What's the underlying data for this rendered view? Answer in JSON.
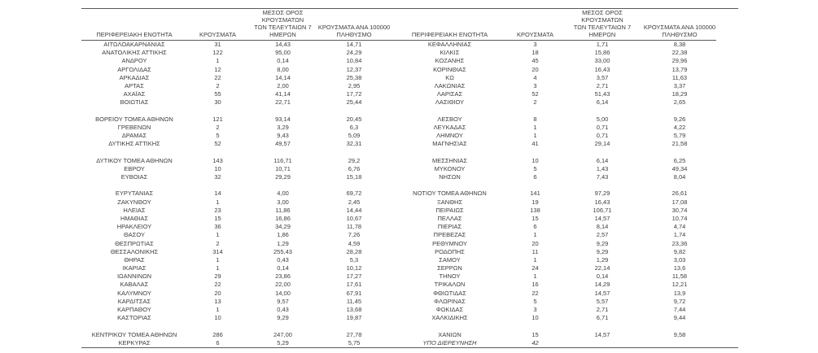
{
  "colors": {
    "background": "#ffffff",
    "text": "#3d3d3d",
    "rule": "#5a5a5a"
  },
  "table": {
    "headers": {
      "region": "ΠΕΡΙΦΕΡΕΙΑΚΗ ΕΝΟΤΗΤΑ",
      "cases": "ΚΡΟΥΣΜΑΤΑ",
      "avg7": "ΜΕΣΟΣ ΟΡΟΣ ΚΡΟΥΣΜΑΤΩΝ\nΤΩΝ ΤΕΛΕΥΤΑΙΩΝ 7\nΗΜΕΡΩΝ",
      "per100k": "ΚΡΟΥΣΜΑΤΑ ΑΝΑ 100000\nΠΛΗΘΥΣΜΟ"
    },
    "left_rows": [
      [
        "ΑΙΤΩΛΟΑΚΑΡΝΑΝΙΑΣ",
        "31",
        "14,43",
        "14,71"
      ],
      [
        "ΑΝΑΤΟΛΙΚΗΣ ΑΤΤΙΚΗΣ",
        "122",
        "95,00",
        "24,29"
      ],
      [
        "ΑΝΔΡΟΥ",
        "1",
        "0,14",
        "10,84"
      ],
      [
        "ΑΡΓΟΛΙΔΑΣ",
        "12",
        "8,00",
        "12,37"
      ],
      [
        "ΑΡΚΑΔΙΑΣ",
        "22",
        "14,14",
        "25,38"
      ],
      [
        "ΑΡΤΑΣ",
        "2",
        "2,00",
        "2,95"
      ],
      [
        "ΑΧΑΪΑΣ",
        "55",
        "41,14",
        "17,72"
      ],
      [
        "ΒΟΙΩΤΙΑΣ",
        "30",
        "22,71",
        "25,44"
      ],
      null,
      [
        "ΒΟΡΕΙΟΥ ΤΟΜΕΑ ΑΘΗΝΩΝ",
        "121",
        "93,14",
        "20,45"
      ],
      [
        "ΓΡΕΒΕΝΩΝ",
        "2",
        "3,29",
        "6,3"
      ],
      [
        "ΔΡΑΜΑΣ",
        "5",
        "9,43",
        "5,09"
      ],
      [
        "ΔΥΤΙΚΗΣ ΑΤΤΙΚΗΣ",
        "52",
        "49,57",
        "32,31"
      ],
      null,
      [
        "ΔΥΤΙΚΟΥ ΤΟΜΕΑ ΑΘΗΝΩΝ",
        "143",
        "116,71",
        "29,2"
      ],
      [
        "ΕΒΡΟΥ",
        "10",
        "10,71",
        "6,76"
      ],
      [
        "ΕΥΒΟΙΑΣ",
        "32",
        "29,29",
        "15,18"
      ],
      null,
      [
        "ΕΥΡΥΤΑΝΙΑΣ",
        "14",
        "4,00",
        "69,72"
      ],
      [
        "ΖΑΚΥΝΘΟΥ",
        "1",
        "3,00",
        "2,45"
      ],
      [
        "ΗΛΕΙΑΣ",
        "23",
        "11,86",
        "14,44"
      ],
      [
        "ΗΜΑΘΙΑΣ",
        "15",
        "16,86",
        "10,67"
      ],
      [
        "ΗΡΑΚΛΕΙΟΥ",
        "36",
        "34,29",
        "11,78"
      ],
      [
        "ΘΑΣΟΥ",
        "1",
        "1,86",
        "7,26"
      ],
      [
        "ΘΕΣΠΡΩΤΙΑΣ",
        "2",
        "1,29",
        "4,59"
      ],
      [
        "ΘΕΣΣΑΛΟΝΙΚΗΣ",
        "314",
        "255,43",
        "28,28"
      ],
      [
        "ΘΗΡΑΣ",
        "1",
        "0,43",
        "5,3"
      ],
      [
        "ΙΚΑΡΙΑΣ",
        "1",
        "0,14",
        "10,12"
      ],
      [
        "ΙΩΑΝΝΙΝΩΝ",
        "29",
        "23,86",
        "17,27"
      ],
      [
        "ΚΑΒΑΛΑΣ",
        "22",
        "22,00",
        "17,61"
      ],
      [
        "ΚΑΛΥΜΝΟΥ",
        "20",
        "14,00",
        "67,91"
      ],
      [
        "ΚΑΡΔΙΤΣΑΣ",
        "13",
        "9,57",
        "11,45"
      ],
      [
        "ΚΑΡΠΑΘΟΥ",
        "1",
        "0,43",
        "13,68"
      ],
      [
        "ΚΑΣΤΟΡΙΑΣ",
        "10",
        "9,29",
        "19,87"
      ],
      null,
      [
        "ΚΕΝΤΡΙΚΟΥ ΤΟΜΕΑ ΑΘΗΝΩΝ",
        "286",
        "247,00",
        "27,78"
      ],
      [
        "ΚΕΡΚΥΡΑΣ",
        "6",
        "5,29",
        "5,75"
      ]
    ],
    "right_rows": [
      [
        "ΚΕΦΑΛΛΗΝΙΑΣ",
        "3",
        "1,71",
        "8,38"
      ],
      [
        "ΚΙΛΚΙΣ",
        "18",
        "15,86",
        "22,38"
      ],
      [
        "ΚΟΖΑΝΗΣ",
        "45",
        "33,00",
        "29,96"
      ],
      [
        "ΚΟΡΙΝΘΙΑΣ",
        "20",
        "16,43",
        "13,79"
      ],
      [
        "ΚΩ",
        "4",
        "3,57",
        "11,63"
      ],
      [
        "ΛΑΚΩΝΙΑΣ",
        "3",
        "2,71",
        "3,37"
      ],
      [
        "ΛΑΡΙΣΑΣ",
        "52",
        "51,43",
        "18,29"
      ],
      [
        "ΛΑΣΙΘΙΟΥ",
        "2",
        "6,14",
        "2,65"
      ],
      null,
      [
        "ΛΕΣΒΟΥ",
        "8",
        "5,00",
        "9,26"
      ],
      [
        "ΛΕΥΚΑΔΑΣ",
        "1",
        "0,71",
        "4,22"
      ],
      [
        "ΛΗΜΝΟΥ",
        "1",
        "0,71",
        "5,79"
      ],
      [
        "ΜΑΓΝΗΣΙΑΣ",
        "41",
        "29,14",
        "21,58"
      ],
      null,
      [
        "ΜΕΣΣΗΝΙΑΣ",
        "10",
        "6,14",
        "6,25"
      ],
      [
        "ΜΥΚΟΝΟΥ",
        "5",
        "1,43",
        "49,34"
      ],
      [
        "ΝΗΣΩΝ",
        "6",
        "7,43",
        "8,04"
      ],
      null,
      [
        "ΝΟΤΙΟΥ ΤΟΜΕΑ ΑΘΗΝΩΝ",
        "141",
        "97,29",
        "26,61"
      ],
      [
        "ΞΑΝΘΗΣ",
        "19",
        "16,43",
        "17,08"
      ],
      [
        "ΠΕΙΡΑΙΩΣ",
        "138",
        "106,71",
        "30,74"
      ],
      [
        "ΠΕΛΛΑΣ",
        "15",
        "14,57",
        "10,74"
      ],
      [
        "ΠΙΕΡΙΑΣ",
        "6",
        "8,14",
        "4,74"
      ],
      [
        "ΠΡΕΒΕΖΑΣ",
        "1",
        "2,57",
        "1,74"
      ],
      [
        "ΡΕΘΥΜΝΟΥ",
        "20",
        "9,29",
        "23,36"
      ],
      [
        "ΡΟΔΟΠΗΣ",
        "11",
        "9,29",
        "9,82"
      ],
      [
        "ΣΑΜΟΥ",
        "1",
        "1,29",
        "3,03"
      ],
      [
        "ΣΕΡΡΩΝ",
        "24",
        "22,14",
        "13,6"
      ],
      [
        "ΤΗΝΟΥ",
        "1",
        "0,14",
        "11,58"
      ],
      [
        "ΤΡΙΚΑΛΩΝ",
        "16",
        "14,29",
        "12,21"
      ],
      [
        "ΦΘΙΩΤΙΔΑΣ",
        "22",
        "14,57",
        "13,9"
      ],
      [
        "ΦΛΩΡΙΝΑΣ",
        "5",
        "5,57",
        "9,72"
      ],
      [
        "ΦΩΚΙΔΑΣ",
        "3",
        "2,71",
        "7,44"
      ],
      [
        "ΧΑΛΚΙΔΙΚΗΣ",
        "10",
        "6,71",
        "9,44"
      ],
      null,
      [
        "ΧΑΝΙΩΝ",
        "15",
        "14,57",
        "9,58"
      ],
      [
        "ΥΠΟ ΔΙΕΡΕΥΝΗΣΗ",
        "42",
        "",
        "",
        "italic"
      ]
    ]
  }
}
